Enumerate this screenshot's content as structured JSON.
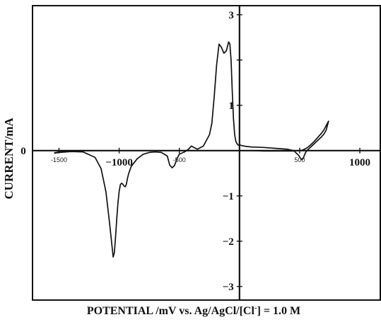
{
  "chart_data": {
    "type": "line",
    "title": "",
    "xlabel": "POTENTIAL /mV vs. Ag/AgCl/[Cl",
    "xlabel_superscript": "-",
    "xlabel_suffix": "] = 1.0 M",
    "ylabel": "CURRENT/mA",
    "xlim": [
      -1720,
      1170
    ],
    "ylim": [
      -3.3,
      3.2
    ],
    "grid": false,
    "legend": "none",
    "line_color": "#111111",
    "x_ticks_large": [
      {
        "value": -1000,
        "label": "−1000"
      },
      {
        "value": 1000,
        "label": "1000"
      }
    ],
    "x_ticks_small": [
      {
        "value": -1500,
        "label": "-1500"
      },
      {
        "value": -500,
        "label": "-500"
      },
      {
        "value": 500,
        "label": "500"
      }
    ],
    "y_ticks": [
      {
        "value": 3,
        "label": "3"
      },
      {
        "value": 1,
        "label": "1"
      },
      {
        "value": -1,
        "label": "−1"
      },
      {
        "value": -2,
        "label": "−2"
      },
      {
        "value": -3,
        "label": "−3"
      }
    ],
    "y_zero_label": "0",
    "x_extra_tick_values": [
      -1500,
      -1000,
      -500,
      500,
      1000
    ],
    "y_extra_tick_values": [
      2
    ],
    "series": [
      {
        "x": [
          -1540,
          -1500,
          -1400,
          -1300,
          -1200,
          -1150,
          -1110,
          -1080,
          -1060,
          -1050,
          -1040,
          -1030,
          -1020,
          -1010,
          -1000,
          -990,
          -980,
          -970,
          -960,
          -950,
          -940,
          -930,
          -920,
          -900,
          -850,
          -800,
          -750,
          -700,
          -650,
          -600,
          -580,
          -560,
          -540,
          -520,
          -500,
          -450,
          -420,
          -400,
          -350,
          -300,
          -250,
          -230,
          -210,
          -190,
          -170,
          -150,
          -130,
          -110,
          -90,
          -80,
          -70,
          -60,
          -50,
          -40,
          -30,
          -20,
          -10,
          0,
          10,
          20,
          40,
          60,
          100,
          200,
          300,
          400,
          450,
          470,
          490,
          510,
          520,
          530,
          540,
          550,
          560,
          580,
          600,
          620,
          640,
          660,
          680,
          700,
          720,
          740,
          720,
          700,
          680,
          660,
          640,
          620,
          600,
          580,
          560,
          540,
          520,
          500,
          450,
          400,
          300,
          200,
          100,
          50,
          0,
          -50,
          -100,
          -150,
          -200,
          -300,
          -400,
          -500,
          -600,
          -800,
          -1000,
          -1200,
          -1400,
          -1500,
          -1540
        ],
        "y": [
          -0.06,
          -0.04,
          -0.02,
          -0.03,
          -0.15,
          -0.4,
          -0.9,
          -1.6,
          -2.1,
          -2.35,
          -2.25,
          -1.9,
          -1.5,
          -1.15,
          -0.9,
          -0.75,
          -0.72,
          -0.74,
          -0.78,
          -0.8,
          -0.74,
          -0.6,
          -0.5,
          -0.35,
          -0.18,
          -0.08,
          -0.04,
          -0.03,
          -0.04,
          -0.12,
          -0.32,
          -0.38,
          -0.33,
          -0.18,
          -0.08,
          -0.02,
          0.04,
          0.1,
          0.03,
          0.1,
          0.35,
          0.6,
          1.2,
          1.9,
          2.35,
          2.28,
          2.15,
          2.2,
          2.4,
          2.35,
          2.0,
          1.3,
          0.7,
          0.35,
          0.2,
          0.15,
          0.12,
          0.12,
          0.12,
          0.11,
          0.1,
          0.09,
          0.08,
          0.07,
          0.05,
          0.03,
          0.0,
          -0.05,
          -0.1,
          -0.18,
          -0.2,
          -0.17,
          -0.1,
          -0.04,
          0.0,
          0.05,
          0.1,
          0.15,
          0.2,
          0.25,
          0.3,
          0.36,
          0.45,
          0.65,
          0.55,
          0.45,
          0.38,
          0.32,
          0.26,
          0.2,
          0.15,
          0.1,
          0.06,
          0.03,
          0.01,
          0.0,
          -0.01,
          -0.01,
          -0.01,
          -0.01,
          0.0,
          0.0,
          0.0,
          0.0,
          0.0,
          0.0,
          0.0,
          0.0,
          0.0,
          0.0,
          0.0,
          0.0,
          0.0,
          0.0,
          -0.01,
          -0.03,
          -0.05
        ]
      }
    ]
  }
}
